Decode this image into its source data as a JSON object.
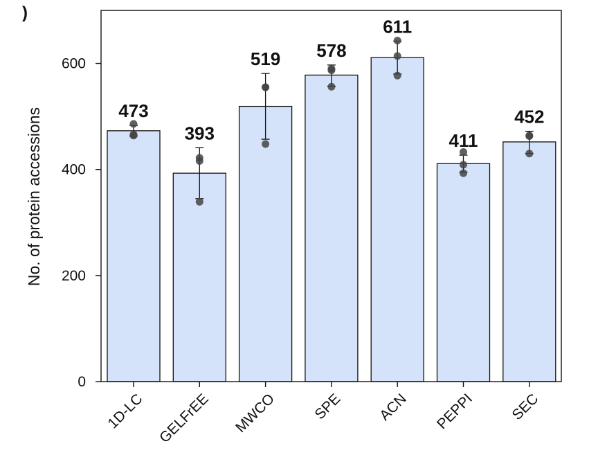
{
  "chart_data": {
    "type": "bar",
    "panel_label": ")",
    "ylabel": "No. of protein accessions",
    "xlabel": "",
    "ylim": [
      0,
      700
    ],
    "yticks": [
      0,
      200,
      400,
      600
    ],
    "grid": false,
    "categories": [
      "1D-LC",
      "GELFrEE",
      "MWCO",
      "SPE",
      "ACN",
      "PEPPI",
      "SEC"
    ],
    "values": [
      473,
      393,
      519,
      578,
      611,
      411,
      452
    ],
    "value_labels": [
      "473",
      "393",
      "519",
      "578",
      "611",
      "411",
      "452"
    ],
    "error_low": [
      463,
      345,
      457,
      557,
      580,
      395,
      430
    ],
    "error_high": [
      483,
      441,
      581,
      597,
      642,
      427,
      472
    ],
    "replicates": [
      [
        486,
        466,
        464
      ],
      [
        422,
        416,
        339
      ],
      [
        555,
        448,
        555
      ],
      [
        590,
        556,
        587
      ],
      [
        643,
        614,
        577
      ],
      [
        433,
        409,
        393
      ],
      [
        464,
        430,
        463
      ]
    ],
    "colors": {
      "bar_fill": "#d5e3fa",
      "bar_stroke": "#111111",
      "point": "#444444",
      "error_bar": "#111111"
    }
  }
}
